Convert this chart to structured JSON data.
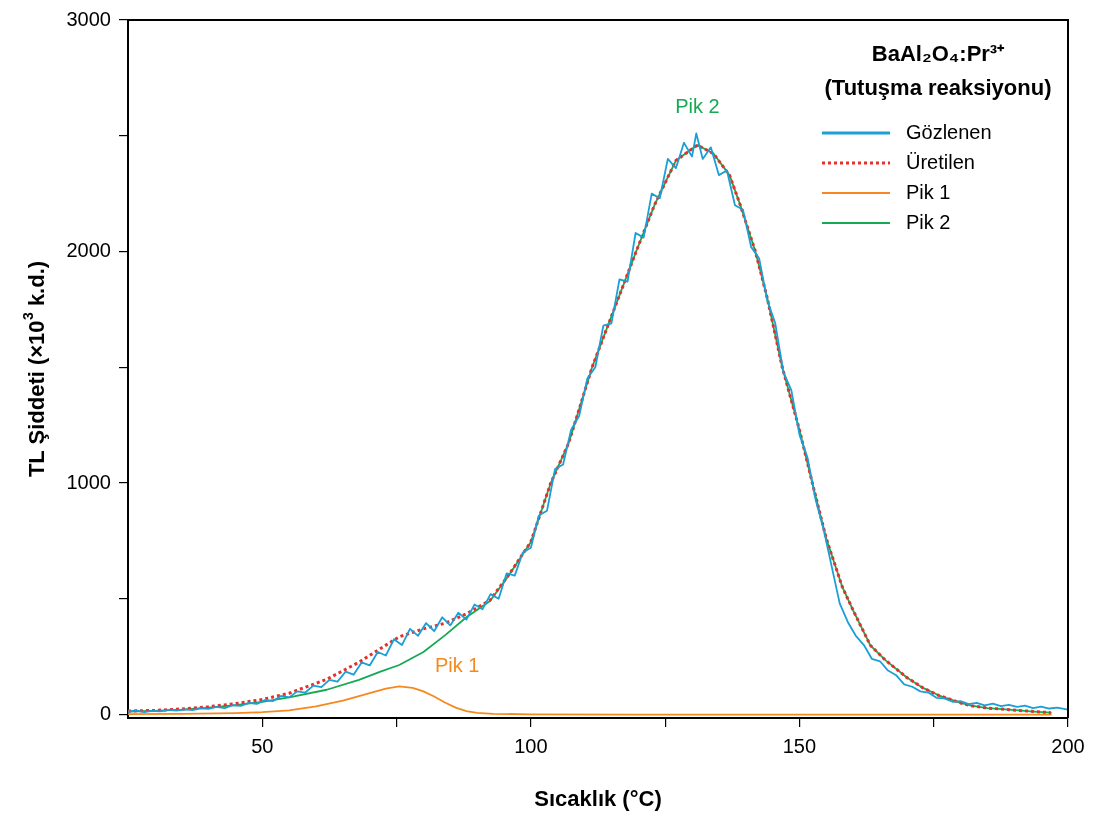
{
  "chart_data": {
    "type": "line",
    "xlabel": "Sıcaklık (°C)",
    "ylabel": "TL Şiddeti (×10$^{3}$ k.d.)",
    "legend_title": "BaAl₂O₄:Pr³⁺\n(Tutuşma reaksiyonu)",
    "xlim": [
      25,
      200
    ],
    "xticks": [
      50,
      {
        "value": 75,
        "label": null
      },
      100,
      {
        "value": 125,
        "label": null
      },
      150,
      {
        "value": 175,
        "label": null
      },
      200
    ],
    "ylim": [
      -15,
      3000
    ],
    "yticks": [
      0,
      {
        "value": 500,
        "label": null
      },
      1000,
      {
        "value": 1500,
        "label": null
      },
      2000,
      {
        "value": 2500,
        "label": null
      },
      3000
    ],
    "grid": false,
    "legend": "top right",
    "marker": "none",
    "annotations": [
      "Pik 1",
      "Pik 2"
    ],
    "series": [
      {
        "name": "Gözlenen",
        "color": "#1b9fd6",
        "x": [
          25,
          26.5,
          28,
          29.5,
          31,
          32.5,
          34,
          35.5,
          37,
          38.5,
          40,
          41.5,
          43,
          44.5,
          46,
          47.5,
          49,
          50.5,
          52,
          53.5,
          55,
          56.5,
          58,
          59.5,
          61,
          62.5,
          64,
          65.5,
          67,
          68.5,
          70,
          71.5,
          73,
          74.5,
          76,
          77.5,
          79,
          80.5,
          82,
          83.5,
          85,
          86.5,
          88,
          89.5,
          91,
          92.5,
          94,
          95.5,
          97,
          98.5,
          100,
          101.5,
          103,
          104.5,
          106,
          107.5,
          109,
          110.5,
          112,
          113.5,
          115,
          116.5,
          118,
          119.5,
          121,
          122.5,
          124,
          125.5,
          127,
          128.5,
          130,
          130.8,
          132,
          133.5,
          135,
          136.5,
          138,
          139.5,
          141,
          142.5,
          144,
          145.5,
          147,
          148.5,
          150,
          151.5,
          153,
          154.5,
          156,
          157.5,
          159,
          160.5,
          162,
          163.5,
          165,
          166.5,
          168,
          169.5,
          171,
          172.5,
          174,
          175.5,
          177,
          178.5,
          180,
          181.5,
          183,
          184.5,
          186,
          187.5,
          189,
          190.5,
          192,
          193.5,
          195,
          196.5,
          198,
          200
        ],
        "values": [
          12,
          18,
          10,
          16,
          14,
          20,
          17,
          22,
          19,
          27,
          24,
          33,
          28,
          40,
          37,
          50,
          46,
          62,
          58,
          80,
          74,
          100,
          95,
          125,
          118,
          150,
          142,
          185,
          172,
          225,
          212,
          270,
          255,
          325,
          300,
          370,
          340,
          395,
          360,
          420,
          385,
          440,
          410,
          475,
          455,
          520,
          500,
          610,
          600,
          700,
          720,
          860,
          880,
          1060,
          1080,
          1230,
          1290,
          1450,
          1500,
          1680,
          1690,
          1880,
          1870,
          2080,
          2060,
          2250,
          2230,
          2400,
          2360,
          2470,
          2410,
          2510,
          2400,
          2450,
          2330,
          2350,
          2200,
          2180,
          2020,
          1970,
          1790,
          1690,
          1480,
          1400,
          1210,
          1110,
          930,
          800,
          640,
          480,
          400,
          340,
          300,
          240,
          230,
          190,
          170,
          130,
          120,
          100,
          95,
          72,
          70,
          55,
          58,
          45,
          50,
          40,
          47,
          36,
          42,
          33,
          38,
          28,
          34,
          26,
          30,
          21
        ]
      },
      {
        "name": "Üretilen",
        "color": "#e8302a",
        "line_style": "dotted",
        "x": [
          25,
          30,
          35,
          40,
          45,
          50,
          55,
          62,
          68,
          72,
          75.5,
          80,
          84,
          88,
          92.4,
          96,
          100,
          103.7,
          107,
          111.4,
          115,
          119.6,
          123,
          127,
          131,
          134,
          137,
          139,
          141.8,
          144,
          146.8,
          150,
          152.4,
          155,
          158,
          160,
          163.2,
          166,
          170,
          173,
          176,
          180,
          182,
          185,
          189,
          193,
          196.8
        ],
        "values": [
          15,
          18,
          24,
          34,
          47,
          65,
          92,
          152,
          226,
          285,
          336,
          370,
          394,
          435,
          494,
          607,
          746,
          1000,
          1170,
          1500,
          1720,
          2000,
          2200,
          2393,
          2460,
          2423,
          2329,
          2200,
          2000,
          1800,
          1500,
          1230,
          1000,
          760,
          550,
          450,
          299,
          235,
          160,
          115,
          82,
          50,
          38,
          28,
          21,
          14,
          8
        ]
      },
      {
        "name": "Pik 1",
        "color": "#f5891f",
        "x": [
          25,
          35,
          45,
          50,
          55,
          60,
          65,
          70,
          73,
          75.5,
          78,
          80,
          82,
          84,
          86,
          88,
          90,
          93,
          100,
          120,
          150,
          196.8
        ],
        "values": [
          2,
          3,
          6,
          10,
          18,
          35,
          60,
          92,
          112,
          122,
          115,
          100,
          78,
          52,
          30,
          15,
          7,
          3,
          1,
          0,
          0,
          0
        ]
      },
      {
        "name": "Pik 2",
        "color": "#16a853",
        "x": [
          25,
          30,
          35,
          40,
          45,
          50,
          55,
          62,
          68,
          72,
          75.5,
          80,
          84,
          88,
          92.4,
          96,
          100,
          103.7,
          107,
          111.4,
          115,
          119.6,
          123,
          127,
          131,
          134,
          137,
          139,
          141.8,
          144,
          146.8,
          150,
          152.4,
          155,
          158,
          160,
          163.2,
          166,
          170,
          173,
          176,
          180,
          182,
          185,
          189,
          193,
          196.8
        ],
        "values": [
          13,
          16,
          21,
          30,
          41,
          55,
          74,
          107,
          150,
          185,
          214,
          270,
          342,
          420,
          490,
          605,
          745,
          1000,
          1170,
          1500,
          1720,
          2000,
          2200,
          2393,
          2460,
          2423,
          2329,
          2200,
          2000,
          1800,
          1500,
          1230,
          1000,
          760,
          550,
          450,
          299,
          235,
          160,
          115,
          82,
          50,
          38,
          28,
          21,
          14,
          8
        ]
      }
    ]
  }
}
